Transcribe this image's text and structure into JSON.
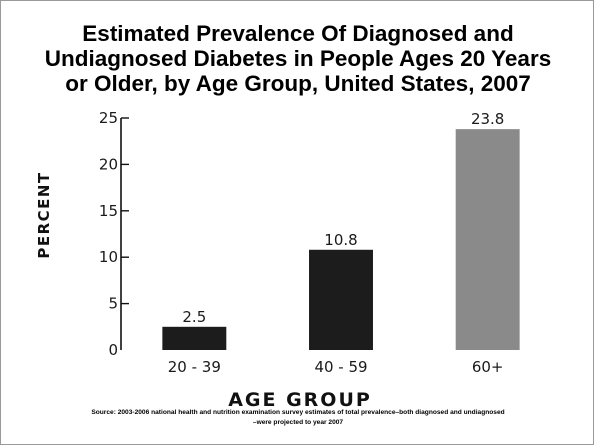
{
  "chart_data": {
    "type": "bar",
    "title_lines": [
      "Estimated Prevalence Of Diagnosed and",
      "Undiagnosed Diabetes in People Ages 20 Years",
      "or Older, by Age Group, United States, 2007"
    ],
    "categories": [
      "20 - 39",
      "40 - 59",
      "60+"
    ],
    "values": [
      2.5,
      10.8,
      23.8
    ],
    "data_labels": [
      "2.5",
      "10.8",
      "23.8"
    ],
    "bar_colors": [
      "#1c1c1c",
      "#1c1c1c",
      "#8a8a8a"
    ],
    "xlabel": "AGE GROUP",
    "ylabel": "PERCENT",
    "ylim": [
      0,
      25
    ],
    "yticks": [
      0,
      5,
      10,
      15,
      20,
      25
    ],
    "ytick_labels": [
      "0",
      "5",
      "10",
      "15",
      "20",
      "25"
    ],
    "grid": false,
    "source_lines": [
      "Source: 2003-2006 national health and nutrition examination survey estimates of total prevalence–both diagnosed and undiagnosed",
      "–were projected to year 2007"
    ]
  }
}
